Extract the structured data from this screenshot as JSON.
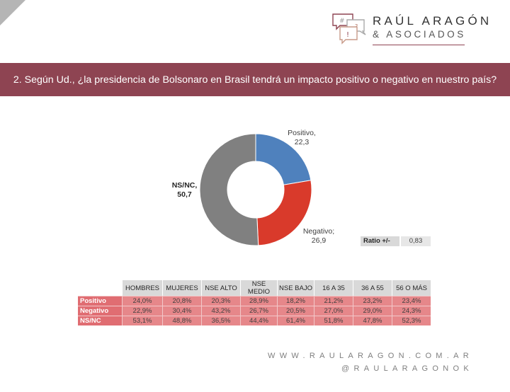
{
  "logo": {
    "title": "RAÚL ARAGÓN",
    "subtitle": "& ASOCIADOS",
    "icon_glyphs": [
      "#",
      "?",
      "!"
    ]
  },
  "banner": {
    "question": "2. Según Ud., ¿la presidencia de Bolsonaro en Brasil tendrá un impacto positivo o negativo en nuestro país?"
  },
  "chart_data": {
    "type": "pie",
    "subtype": "donut",
    "title": "2. Según Ud., ¿la presidencia de Bolsonaro en Brasil tendrá un impacto positivo o negativo en nuestro país?",
    "categories": [
      "Positivo",
      "Negativo",
      "NS/NC"
    ],
    "values": [
      22.3,
      26.9,
      50.7
    ],
    "colors": [
      "#4f81bd",
      "#d93a2b",
      "#808080"
    ],
    "labels": [
      {
        "name": "Positivo,",
        "value": "22,3"
      },
      {
        "name": "Negativo;",
        "value": "26,9"
      },
      {
        "name": "NS/NC,",
        "value": "50,7"
      }
    ],
    "legend": "none (data labels)",
    "ratio": {
      "label": "Ratio +/-",
      "value": "0,83"
    },
    "table": {
      "columns": [
        "HOMBRES",
        "MUJERES",
        "NSE ALTO",
        "NSE MEDIO",
        "NSE BAJO",
        "16 A 35",
        "36 A 55",
        "56 O MÁS"
      ],
      "rows": [
        {
          "label": "Positivo",
          "values": [
            "24,0%",
            "20,8%",
            "20,3%",
            "28,9%",
            "18,2%",
            "21,2%",
            "23,2%",
            "23,4%"
          ]
        },
        {
          "label": "Negativo",
          "values": [
            "22,9%",
            "30,4%",
            "43,2%",
            "26,7%",
            "20,5%",
            "27,0%",
            "29,0%",
            "24,3%"
          ]
        },
        {
          "label": "NS/NC",
          "values": [
            "53,1%",
            "48,8%",
            "36,5%",
            "44,4%",
            "61,4%",
            "51,8%",
            "47,8%",
            "52,3%"
          ]
        }
      ]
    }
  },
  "colors": {
    "brand": "#8e4452",
    "positive": "#4f81bd",
    "negative": "#d93a2b",
    "nsnc": "#808080",
    "table_row_header": "#e06d72",
    "table_cell": "#e6878a",
    "table_col_header": "#d9d9d9"
  },
  "footer": {
    "website": "WWW.RAULARAGON.COM.AR",
    "handle": "@RAULARAGONOK"
  }
}
